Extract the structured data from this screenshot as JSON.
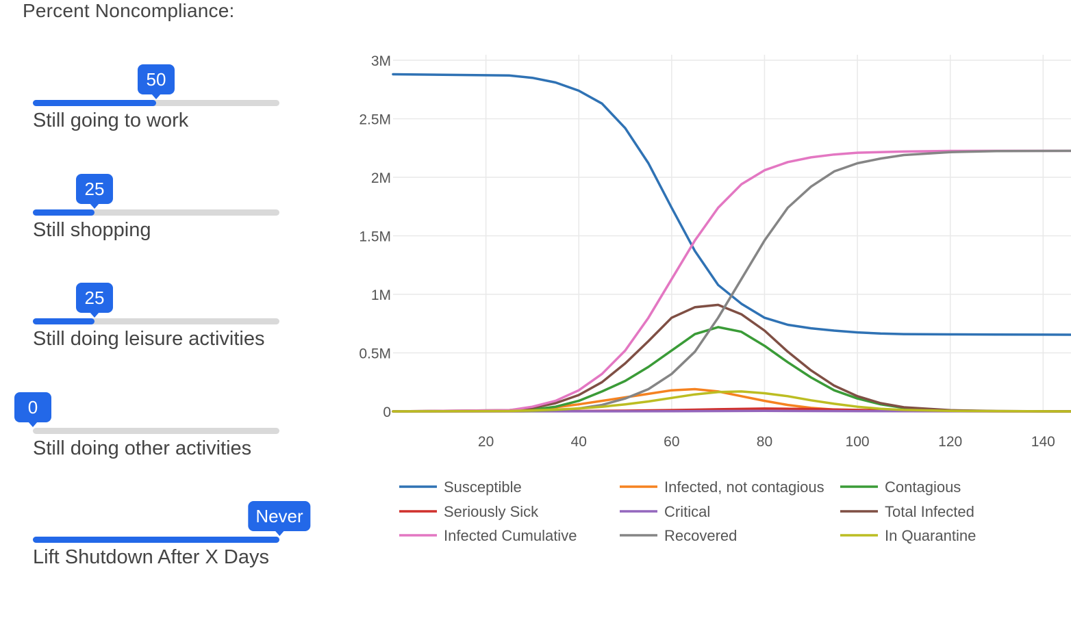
{
  "controls": {
    "title": "Percent Noncompliance:",
    "sliders": [
      {
        "label": "Still going to work",
        "value": 50,
        "display": "50",
        "fraction": 0.5
      },
      {
        "label": "Still shopping",
        "value": 25,
        "display": "25",
        "fraction": 0.25
      },
      {
        "label": "Still doing leisure activities",
        "value": 25,
        "display": "25",
        "fraction": 0.25
      },
      {
        "label": "Still doing other activities",
        "value": 0,
        "display": "0",
        "fraction": 0.0
      },
      {
        "label": "Lift Shutdown After X Days",
        "value": null,
        "display": "Never",
        "fraction": 1.0
      }
    ],
    "accent_color": "#2368e8"
  },
  "chart_data": {
    "type": "line",
    "title": "",
    "xlabel": "",
    "ylabel": "",
    "xlim": [
      0,
      146
    ],
    "ylim": [
      0,
      3000000
    ],
    "x_ticks": [
      20,
      40,
      60,
      80,
      100,
      120,
      140
    ],
    "y_ticks": [
      {
        "value": 0,
        "label": "0"
      },
      {
        "value": 500000,
        "label": "0.5M"
      },
      {
        "value": 1000000,
        "label": "1M"
      },
      {
        "value": 1500000,
        "label": "1.5M"
      },
      {
        "value": 2000000,
        "label": "2M"
      },
      {
        "value": 2500000,
        "label": "2.5M"
      },
      {
        "value": 3000000,
        "label": "3M"
      }
    ],
    "grid": true,
    "legend_position": "bottom",
    "series": [
      {
        "name": "Susceptible",
        "color": "#2f72b4",
        "x": [
          0,
          25,
          30,
          35,
          40,
          45,
          50,
          55,
          60,
          65,
          70,
          75,
          80,
          85,
          90,
          95,
          100,
          105,
          110,
          120,
          130,
          146
        ],
        "y": [
          2880000,
          2870000,
          2850000,
          2810000,
          2740000,
          2630000,
          2420000,
          2120000,
          1740000,
          1370000,
          1080000,
          920000,
          800000,
          740000,
          710000,
          690000,
          675000,
          665000,
          660000,
          658000,
          656000,
          655000
        ]
      },
      {
        "name": "Infected, not contagious",
        "color": "#f58220",
        "x": [
          0,
          25,
          30,
          35,
          40,
          45,
          50,
          55,
          60,
          65,
          70,
          75,
          80,
          85,
          90,
          95,
          100,
          110,
          120,
          146
        ],
        "y": [
          0,
          5000,
          15000,
          35000,
          60000,
          90000,
          120000,
          150000,
          180000,
          190000,
          170000,
          130000,
          90000,
          55000,
          30000,
          15000,
          8000,
          3000,
          1000,
          0
        ]
      },
      {
        "name": "Contagious",
        "color": "#3a9b37",
        "x": [
          0,
          25,
          30,
          35,
          40,
          45,
          50,
          55,
          60,
          65,
          70,
          75,
          80,
          85,
          90,
          95,
          100,
          105,
          110,
          120,
          130,
          146
        ],
        "y": [
          0,
          5000,
          15000,
          40000,
          90000,
          170000,
          260000,
          380000,
          520000,
          660000,
          720000,
          680000,
          560000,
          420000,
          290000,
          180000,
          110000,
          60000,
          30000,
          8000,
          2000,
          0
        ]
      },
      {
        "name": "Seriously Sick",
        "color": "#d0312d",
        "x": [
          0,
          30,
          40,
          50,
          60,
          70,
          80,
          90,
          100,
          110,
          120,
          146
        ],
        "y": [
          0,
          1000,
          3000,
          6000,
          11000,
          18000,
          24000,
          20000,
          12000,
          5000,
          2000,
          0
        ]
      },
      {
        "name": "Critical",
        "color": "#9467bd",
        "x": [
          0,
          40,
          60,
          80,
          100,
          120,
          146
        ],
        "y": [
          0,
          500,
          2000,
          4000,
          2500,
          800,
          0
        ]
      },
      {
        "name": "Total Infected",
        "color": "#7f4f44",
        "x": [
          0,
          25,
          30,
          35,
          40,
          45,
          50,
          55,
          60,
          65,
          70,
          75,
          80,
          85,
          90,
          95,
          100,
          105,
          110,
          120,
          130,
          146
        ],
        "y": [
          0,
          10000,
          30000,
          70000,
          140000,
          250000,
          410000,
          600000,
          800000,
          890000,
          910000,
          830000,
          690000,
          510000,
          350000,
          220000,
          130000,
          70000,
          35000,
          10000,
          3000,
          0
        ]
      },
      {
        "name": "Infected Cumulative",
        "color": "#e377c2",
        "x": [
          0,
          25,
          30,
          35,
          40,
          45,
          50,
          55,
          60,
          65,
          70,
          75,
          80,
          85,
          90,
          95,
          100,
          110,
          120,
          130,
          146
        ],
        "y": [
          0,
          10000,
          40000,
          90000,
          180000,
          320000,
          520000,
          800000,
          1130000,
          1460000,
          1740000,
          1940000,
          2060000,
          2130000,
          2170000,
          2195000,
          2210000,
          2220000,
          2225000,
          2226000,
          2226000
        ]
      },
      {
        "name": "Recovered",
        "color": "#858585",
        "x": [
          0,
          30,
          35,
          40,
          45,
          50,
          55,
          60,
          65,
          70,
          75,
          80,
          85,
          90,
          95,
          100,
          105,
          110,
          120,
          130,
          146
        ],
        "y": [
          0,
          2000,
          10000,
          25000,
          55000,
          110000,
          190000,
          320000,
          510000,
          800000,
          1130000,
          1460000,
          1740000,
          1920000,
          2050000,
          2120000,
          2160000,
          2190000,
          2215000,
          2224000,
          2226000
        ]
      },
      {
        "name": "In Quarantine",
        "color": "#bcbd22",
        "x": [
          0,
          25,
          30,
          35,
          40,
          45,
          50,
          55,
          60,
          65,
          70,
          75,
          80,
          85,
          90,
          95,
          100,
          105,
          110,
          120,
          146
        ],
        "y": [
          0,
          3000,
          8000,
          15000,
          25000,
          40000,
          60000,
          85000,
          115000,
          145000,
          165000,
          170000,
          155000,
          130000,
          95000,
          65000,
          40000,
          22000,
          12000,
          4000,
          0
        ]
      }
    ]
  }
}
